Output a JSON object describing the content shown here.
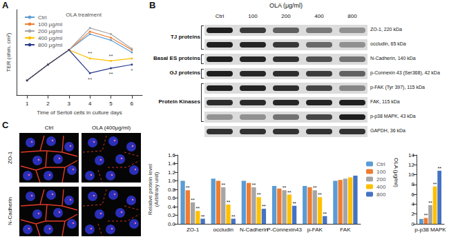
{
  "chart_data": [
    {
      "type": "line",
      "xlabel": "Time of Sertoli cells in culture days",
      "ylabel": "TER (ohm. cm²)",
      "x": [
        1,
        2,
        3,
        4,
        5,
        6
      ],
      "xlim": [
        0.5,
        6.5
      ],
      "xticks": [
        1,
        2,
        3,
        4,
        5,
        6
      ],
      "ylim": [
        0,
        70
      ],
      "tick_labels": "x",
      "grid": false,
      "legend": "upper left",
      "marker": "circle",
      "series": [
        {
          "name": "Ctrl",
          "color": "#5b9bd5",
          "values": [
            12,
            25,
            37,
            50,
            45,
            35
          ]
        },
        {
          "name": "100 μg/ml",
          "color": "#ed7d31",
          "values": [
            12,
            25,
            37,
            52,
            47,
            37
          ]
        },
        {
          "name": "200 μg/ml",
          "color": "#a5a5a5",
          "values": [
            12,
            25,
            37,
            55,
            50,
            38
          ]
        },
        {
          "name": "400 μg/ml",
          "color": "#ffc000",
          "values": [
            12,
            25,
            37,
            30,
            28,
            30
          ]
        },
        {
          "name": "800 μg/ml",
          "color": "#2b3a8c",
          "values": [
            12,
            25,
            37,
            18,
            22,
            25
          ]
        }
      ],
      "annotations": [
        {
          "text": "OLA treatment",
          "x": 3.7,
          "y": 66
        },
        {
          "text": "**",
          "x": 4,
          "y": 34
        },
        {
          "text": "**",
          "x": 4,
          "y": 13
        },
        {
          "text": "**",
          "x": 5,
          "y": 32
        },
        {
          "text": "**",
          "x": 5,
          "y": 17
        },
        {
          "text": "*",
          "x": 6,
          "y": 20
        }
      ]
    },
    {
      "type": "bar",
      "ylabel": "Relative protein level\n(Arbitrary unit)",
      "categories": [
        "ZO-1",
        "occludin",
        "N-Cadherin",
        "P-Connexin43",
        "p-FAK",
        "FAK"
      ],
      "ylim": [
        0,
        1.6
      ],
      "yticks": [
        {
          "value": 0,
          "label": "0.0"
        },
        0.2,
        0.4,
        0.6,
        0.8,
        {
          "value": 1,
          "label": "1.0"
        },
        1.2,
        1.4,
        1.6
      ],
      "grid": false,
      "legend": "right",
      "legend_title": "OLA (μg/ml)",
      "series": [
        {
          "name": "Ctrl",
          "color": "#5b9bd5",
          "values": [
            1.0,
            1.05,
            1.0,
            0.88,
            0.88,
            1.0
          ],
          "significance": [
            null,
            null,
            null,
            null,
            null,
            null
          ]
        },
        {
          "name": "100",
          "color": "#ed7d31",
          "values": [
            0.78,
            1.0,
            0.95,
            0.82,
            0.85,
            1.02
          ],
          "significance": [
            "**",
            null,
            null,
            null,
            null,
            null
          ]
        },
        {
          "name": "200",
          "color": "#a5a5a5",
          "values": [
            0.5,
            0.85,
            0.85,
            0.78,
            0.78,
            1.05
          ],
          "significance": [
            "**",
            "**",
            "**",
            "**",
            "**",
            null
          ]
        },
        {
          "name": "400",
          "color": "#ffc000",
          "values": [
            0.3,
            0.45,
            0.62,
            0.68,
            0.62,
            1.08
          ],
          "significance": [
            "**",
            "**",
            "**",
            "**",
            "**",
            null
          ]
        },
        {
          "name": "800",
          "color": "#4472c4",
          "values": [
            0.12,
            0.12,
            0.35,
            0.42,
            0.18,
            1.12
          ],
          "significance": [
            "**",
            "**",
            "**",
            "**",
            "**",
            null
          ]
        }
      ]
    },
    {
      "type": "bar",
      "categories": [
        "p-p38 MAPK"
      ],
      "ylim": [
        0,
        14
      ],
      "yticks": [
        0,
        2,
        4,
        6,
        8,
        10,
        12,
        14
      ],
      "grid": false,
      "series": [
        {
          "name": "Ctrl",
          "color": "#5b9bd5",
          "values": [
            1.0
          ],
          "significance": [
            null
          ]
        },
        {
          "name": "100",
          "color": "#ed7d31",
          "values": [
            1.2
          ],
          "significance": [
            "**"
          ]
        },
        {
          "name": "200",
          "color": "#a5a5a5",
          "values": [
            3.8
          ],
          "significance": [
            "**"
          ]
        },
        {
          "name": "400",
          "color": "#ffc000",
          "values": [
            7.6
          ],
          "significance": [
            "**"
          ]
        },
        {
          "name": "800",
          "color": "#4472c4",
          "values": [
            10.8
          ],
          "significance": [
            "**"
          ]
        }
      ]
    }
  ],
  "panel_labels": [
    "A",
    "B",
    "C"
  ],
  "blot": {
    "header": "OLA (μg/ml)",
    "lanes": [
      "Ctrl",
      "100",
      "200",
      "400",
      "800"
    ],
    "groups": [
      {
        "label": "TJ proteins",
        "bands": [
          "ZO-1, 220 kDa",
          "occludin, 65 kDa"
        ]
      },
      {
        "label": "Basal ES proteins",
        "bands": [
          "N-Cadherin, 140 kDa"
        ]
      },
      {
        "label": "GJ proteins",
        "bands": [
          "p-Connexin 43 (Ser368), 42 kDa"
        ]
      },
      {
        "label": "Protein Kinases",
        "bands": [
          "p-FAK (Tyr 397), 115 kDa",
          "FAK, 115 kDa",
          "p-p38 MAPK, 43 kDa"
        ]
      }
    ],
    "control": "GAPDH, 36 kDa"
  },
  "images": {
    "columns": [
      "Ctrl",
      "OLA (400μg/ml)"
    ],
    "rows": [
      "ZO-1",
      "N-Cadherin"
    ]
  }
}
